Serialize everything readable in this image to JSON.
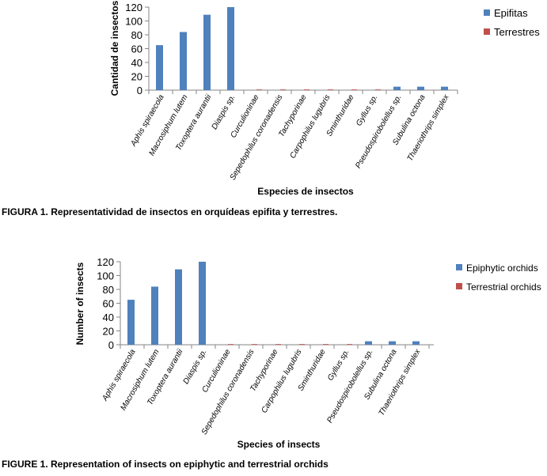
{
  "figures": [
    {
      "caption": "FIGURA 1. Representatividad de insectos en orquídeas epifita y terrestres.",
      "chart_data": {
        "type": "bar",
        "categories": [
          "Aphis spiraecola",
          "Macrosiphum lutem",
          "Toxoptera aurantii",
          "Diaspis sp.",
          "Curculioninae",
          "Sepedophilus coronadensis",
          "Tachyporinae",
          "Carpophilus lugubris",
          "Sminthuridae",
          "Gyllus sp.",
          "Pseudospirobolellus sp.",
          "Subulina octona",
          "Thaeriothrips simplex"
        ],
        "series": [
          {
            "name": "Epifitas",
            "color": "#4f81bd",
            "values": [
              65,
              84,
              109,
              120,
              0,
              0,
              0,
              0,
              0,
              0,
              5,
              5,
              5
            ]
          },
          {
            "name": "Terrestres",
            "color": "#c0504d",
            "values": [
              0,
              0,
              0,
              0,
              1,
              1,
              1,
              1,
              1,
              1,
              0,
              0,
              0
            ]
          }
        ],
        "xlabel": "Especies de insectos",
        "ylabel": "Cantidad  de insectos",
        "ylim": [
          0,
          120
        ],
        "yticks": [
          0,
          20,
          40,
          60,
          80,
          100,
          120
        ],
        "grid": false,
        "legend": "right"
      }
    },
    {
      "caption": "FIGURE 1. Representation of insects on epiphytic and terrestrial orchids",
      "chart_data": {
        "type": "bar",
        "categories": [
          "Aphis spiraecola",
          "Macrosiphum lutem",
          "Toxoptera aurantii",
          "Diaspis sp.",
          "Curculioninae",
          "Sepedophilus coronadensis",
          "Tachyporinae",
          "Carpophilus lugubris",
          "Sminthuridae",
          "Gyllus sp.",
          "Pseudospirobolellus sp.",
          "Subulina octona",
          "Thaeriothrips simplex"
        ],
        "series": [
          {
            "name": "Epiphytic orchids",
            "color": "#4f81bd",
            "values": [
              65,
              84,
              109,
              120,
              0,
              0,
              0,
              0,
              0,
              0,
              5,
              5,
              5
            ]
          },
          {
            "name": "Terrestrial orchids",
            "color": "#c0504d",
            "values": [
              0,
              0,
              0,
              0,
              1,
              1,
              1,
              1,
              1,
              1,
              0,
              0,
              0
            ]
          }
        ],
        "xlabel": "Species of insects",
        "ylabel": "Number of insects",
        "ylim": [
          0,
          120
        ],
        "yticks": [
          0,
          20,
          40,
          60,
          80,
          100,
          120
        ],
        "grid": false,
        "legend": "right"
      }
    }
  ]
}
